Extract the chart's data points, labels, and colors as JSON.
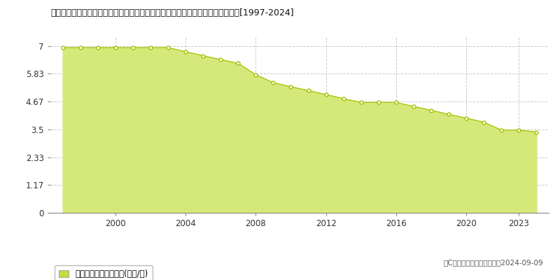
{
  "title": "鴥取県八頭郡若桜町大字若桜字古海橋ノ本１１１１番３２　基準地価　地価推移[1997-2024]",
  "years": [
    1997,
    1998,
    1999,
    2000,
    2001,
    2002,
    2003,
    2004,
    2005,
    2006,
    2007,
    2008,
    2009,
    2010,
    2011,
    2012,
    2013,
    2014,
    2015,
    2016,
    2017,
    2018,
    2019,
    2020,
    2021,
    2022,
    2023,
    2024
  ],
  "values": [
    6.93,
    6.93,
    6.93,
    6.93,
    6.93,
    6.93,
    6.93,
    6.76,
    6.59,
    6.43,
    6.27,
    5.79,
    5.46,
    5.29,
    5.13,
    4.96,
    4.79,
    4.63,
    4.63,
    4.63,
    4.46,
    4.3,
    4.13,
    3.97,
    3.8,
    3.47,
    3.47,
    3.39
  ],
  "fill_color": "#d4e97a",
  "line_color": "#a8c000",
  "marker_face_color": "#ffffff",
  "marker_edge_color": "#a8c000",
  "background_color": "#ffffff",
  "plot_bg_color": "#ffffff",
  "grid_color": "#cccccc",
  "yticks": [
    0,
    1.17,
    2.33,
    3.5,
    4.67,
    5.83,
    7
  ],
  "ylim": [
    0,
    7.4
  ],
  "xlim": [
    1996.3,
    2024.7
  ],
  "xticks": [
    2000,
    2004,
    2008,
    2012,
    2016,
    2020,
    2023
  ],
  "legend_label": "基準地価　平均坪単価(万円/坪)",
  "copyright_text": "（C）土地価格ドットコム　2024-09-09",
  "legend_marker_color": "#c8dc3c"
}
